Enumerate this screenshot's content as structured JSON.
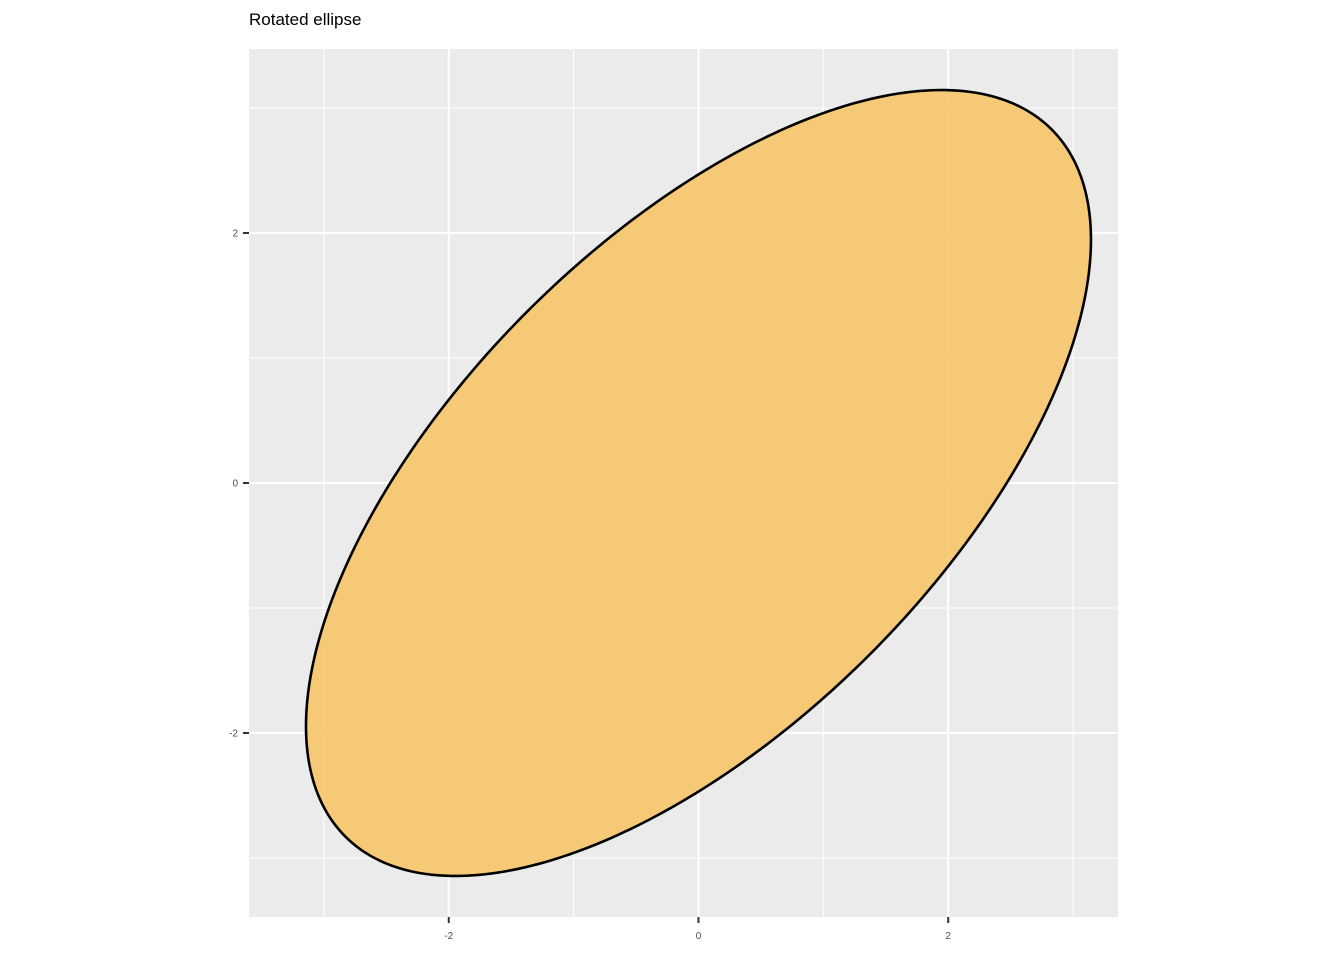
{
  "chart_data": {
    "type": "area",
    "title": "Rotated ellipse",
    "xlabel": "",
    "ylabel": "",
    "xlim": [
      -3.6,
      3.36
    ],
    "ylim": [
      -3.472,
      3.472
    ],
    "x_ticks": [
      -2,
      0,
      2
    ],
    "x_tick_labels": [
      "-2",
      "0",
      "2"
    ],
    "y_ticks": [
      -2,
      0,
      2
    ],
    "y_tick_labels": [
      "-2",
      "0",
      "2"
    ],
    "x_minor_grid": [
      -3,
      -1,
      1,
      3
    ],
    "y_minor_grid": [
      -3,
      -1,
      1,
      3
    ],
    "grid": true,
    "legend": "none",
    "ellipse": {
      "center": [
        0,
        0
      ],
      "semi_major": 4.0,
      "semi_minor": 1.94,
      "rotation_deg": 45,
      "start_angle_deg": 94
    },
    "colors": {
      "panel_background": "#ebebeb",
      "gridline": "#ffffff",
      "fill": "#f5c66b",
      "fill_opacity": 0.92,
      "outline": "#000000",
      "tick_text": "#4d4d4d",
      "tick_mark": "#333333"
    }
  }
}
